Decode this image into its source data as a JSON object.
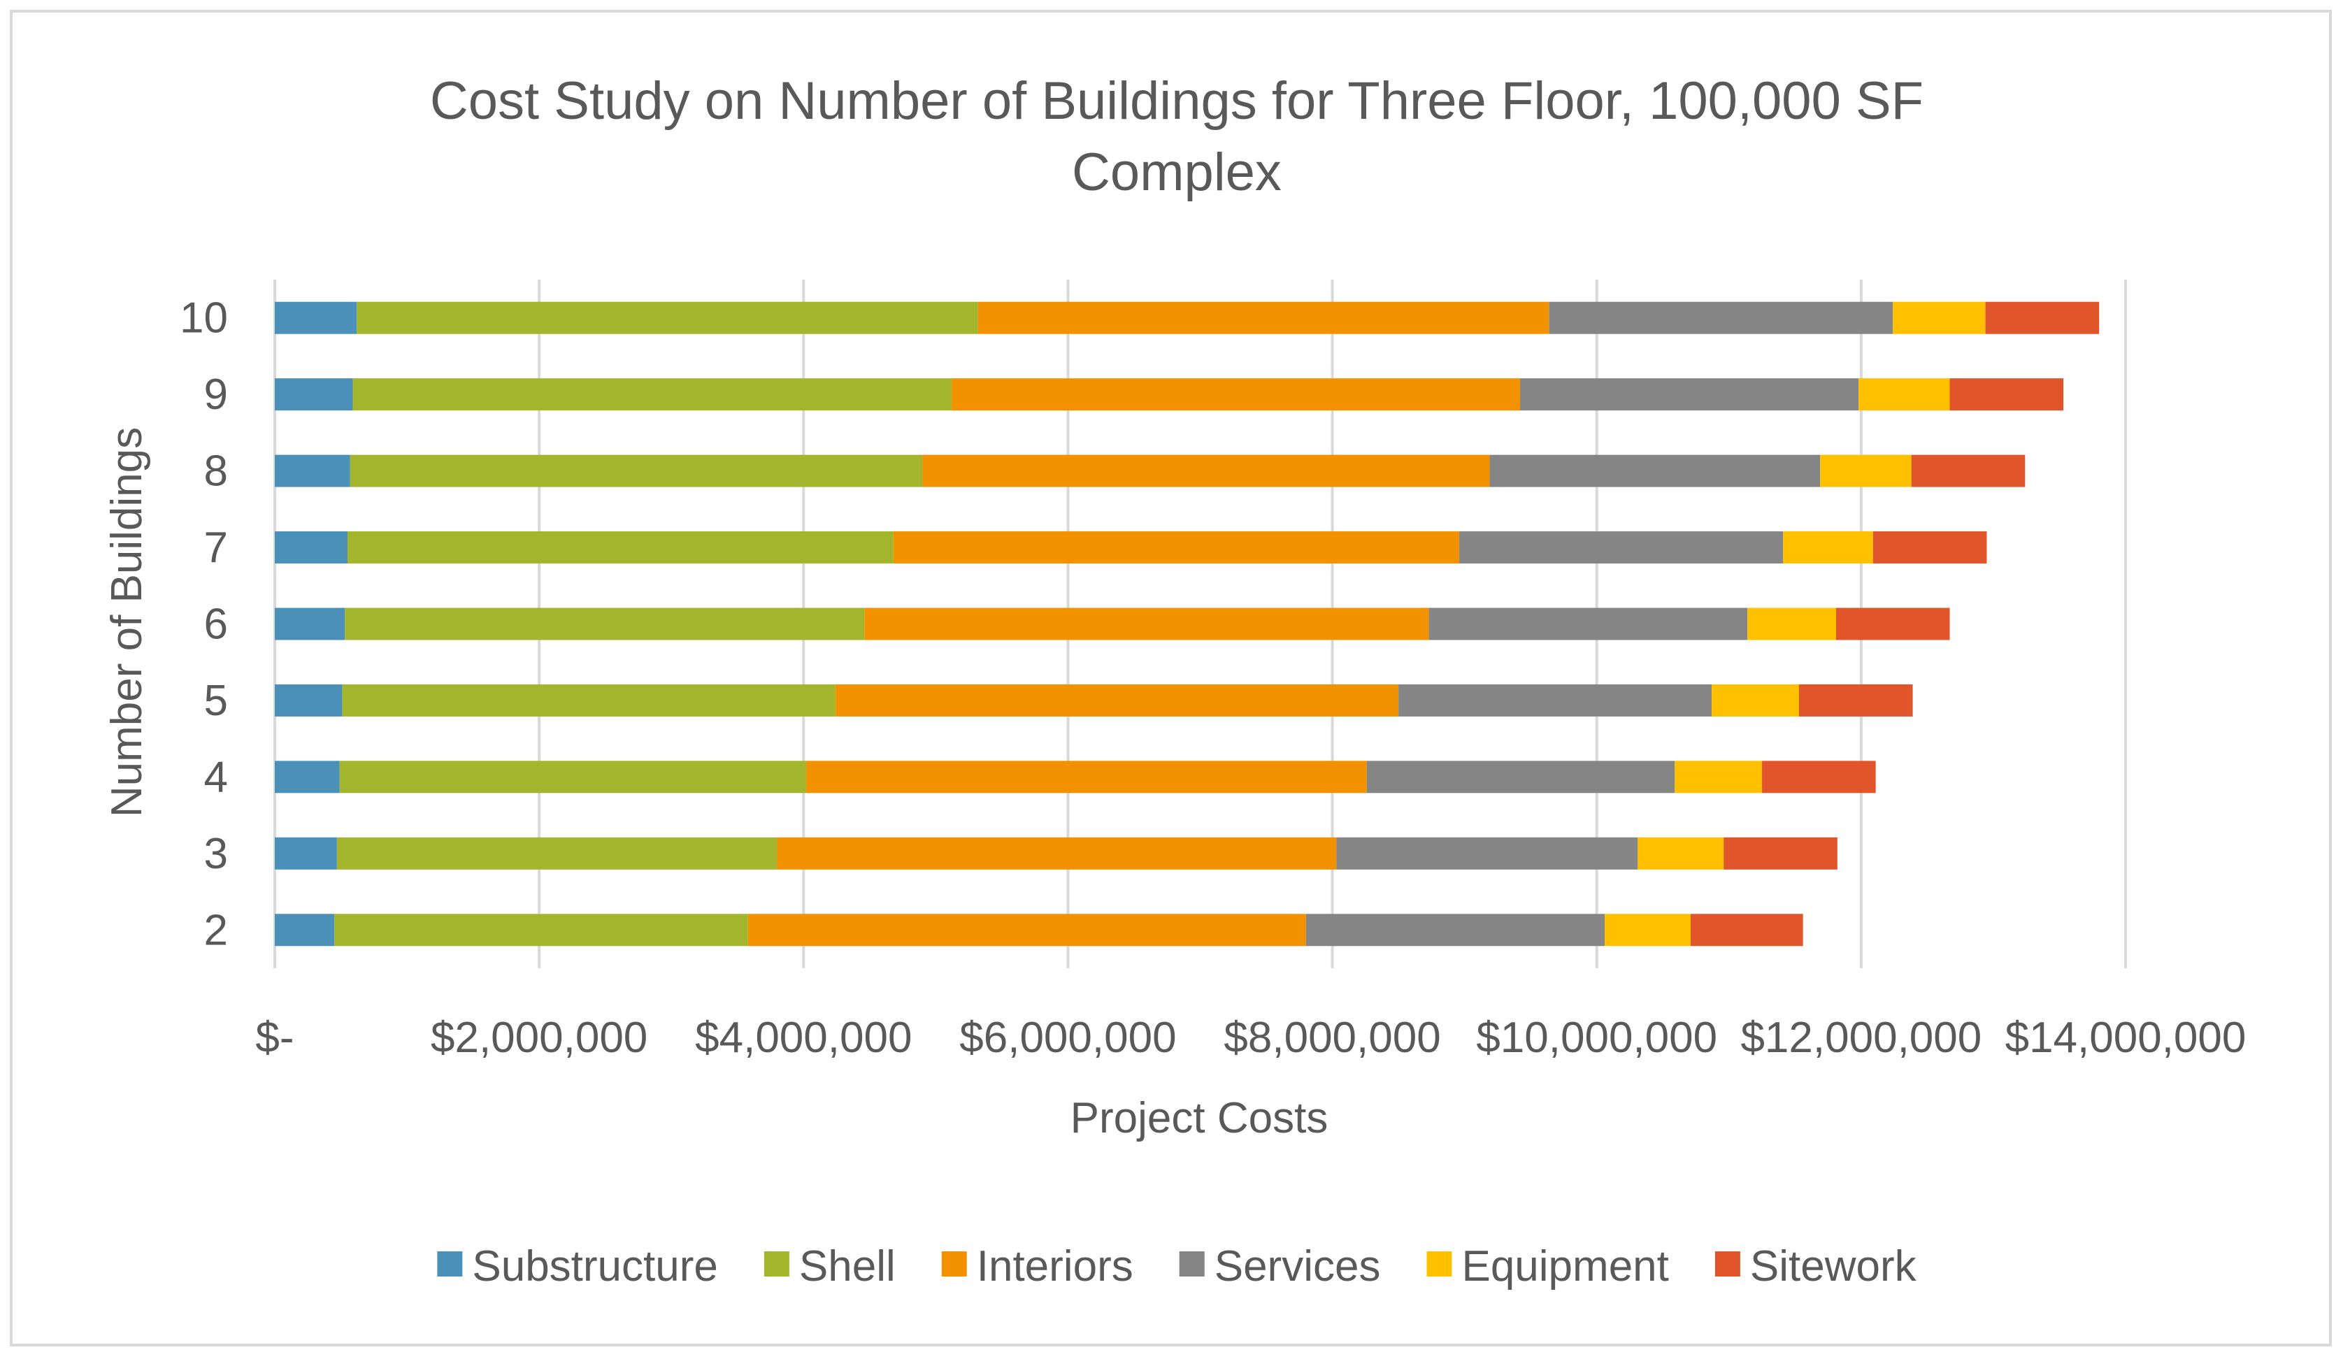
{
  "chart_data": {
    "type": "bar",
    "orientation": "horizontal",
    "stacked": true,
    "title": "Cost Study on Number of Buildings for Three Floor, 100,000 SF Complex",
    "title_lines": [
      "Cost Study on Number of Buildings for Three Floor, 100,000 SF",
      "Complex"
    ],
    "xlabel": "Project Costs",
    "ylabel": "Number of Buildings",
    "categories": [
      "2",
      "3",
      "4",
      "5",
      "6",
      "7",
      "8",
      "9",
      "10"
    ],
    "xlim": [
      0,
      14000000
    ],
    "x_ticks": [
      0,
      2000000,
      4000000,
      6000000,
      8000000,
      10000000,
      12000000,
      14000000
    ],
    "x_tick_labels": [
      "$-",
      "$2,000,000",
      "$4,000,000",
      "$6,000,000",
      "$8,000,000",
      "$10,000,000",
      "$12,000,000",
      "$14,000,000"
    ],
    "grid": "vertical",
    "legend": "bottom",
    "series": [
      {
        "name": "Substructure",
        "color": "#4a90b8",
        "values": [
          450000,
          470000,
          490000,
          510000,
          530000,
          550000,
          570000,
          590000,
          620000
        ]
      },
      {
        "name": "Shell",
        "color": "#a3b52c",
        "values": [
          3130000,
          3330000,
          3530000,
          3730000,
          3930000,
          4130000,
          4330000,
          4530000,
          4700000
        ]
      },
      {
        "name": "Interiors",
        "color": "#f39200",
        "values": [
          4220000,
          4230000,
          4240000,
          4260000,
          4270000,
          4280000,
          4290000,
          4300000,
          4320000
        ]
      },
      {
        "name": "Services",
        "color": "#858585",
        "values": [
          2260000,
          2280000,
          2330000,
          2370000,
          2410000,
          2450000,
          2500000,
          2560000,
          2600000
        ]
      },
      {
        "name": "Equipment",
        "color": "#ffc000",
        "values": [
          650000,
          650000,
          660000,
          660000,
          670000,
          680000,
          690000,
          690000,
          700000
        ]
      },
      {
        "name": "Sitework",
        "color": "#e0552a",
        "values": [
          850000,
          860000,
          860000,
          860000,
          860000,
          860000,
          860000,
          860000,
          860000
        ]
      }
    ]
  }
}
